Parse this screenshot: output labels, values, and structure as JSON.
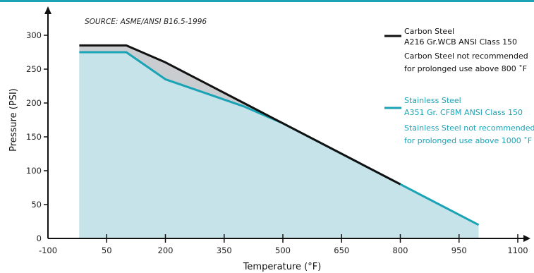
{
  "chart_data": {
    "type": "area",
    "source": "SOURCE: ASME/ANSI B16.5-1996",
    "xlabel": "Temperature (°F)",
    "ylabel": "Pressure (PSI)",
    "xlim": [
      -100,
      1100
    ],
    "ylim": [
      0,
      300
    ],
    "xticks": [
      -100,
      50,
      200,
      350,
      500,
      650,
      800,
      950,
      1100
    ],
    "xtick_labels": [
      "-100",
      "50",
      "200",
      "350",
      "500",
      "650",
      "800",
      "950",
      "1100"
    ],
    "yticks": [
      0,
      50,
      100,
      150,
      200,
      250,
      300
    ],
    "ytick_labels": [
      "0",
      "50",
      "100",
      "150",
      "200",
      "250",
      "300"
    ],
    "series": [
      {
        "name": "Carbon Steel",
        "legend": [
          "Carbon Steel",
          "A216 Gr.WCB ANSI Class 150"
        ],
        "note": [
          "Carbon Steel not recommended",
          "for prolonged use above 800 ˚F"
        ],
        "color": "#111111",
        "fill": "#c9cdd0",
        "x": [
          -20,
          100,
          200,
          300,
          400,
          500,
          600,
          700,
          800
        ],
        "y": [
          285,
          285,
          260,
          230,
          200,
          170,
          140,
          110,
          80
        ]
      },
      {
        "name": "Stainless Steel",
        "legend": [
          "Stainless Steel",
          "A351 Gr. CF8M ANSI Class 150"
        ],
        "note": [
          "Stainless Steel not recommended",
          "for prolonged use above 1000 ˚F"
        ],
        "color": "#1aa3b5",
        "fill": "#c5e3e8",
        "x": [
          -20,
          100,
          200,
          300,
          400,
          500,
          600,
          700,
          800,
          900,
          1000
        ],
        "y": [
          275,
          275,
          235,
          215,
          195,
          170,
          140,
          110,
          80,
          50,
          20
        ]
      }
    ]
  }
}
